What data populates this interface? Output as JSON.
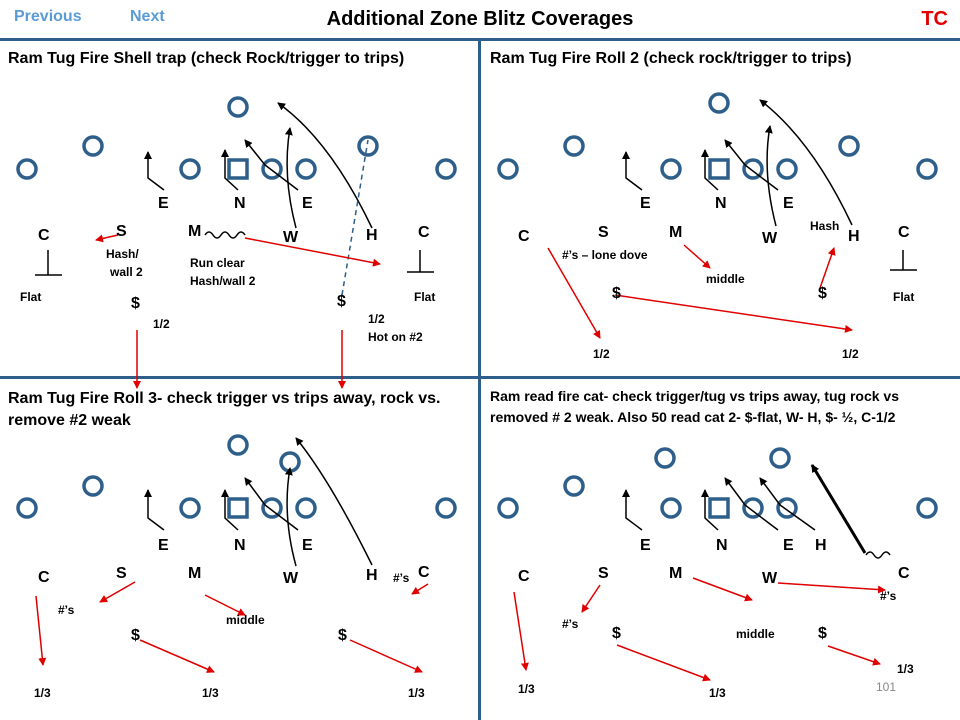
{
  "nav": {
    "previous": "Previous",
    "next": "Next"
  },
  "page_title": "Additional Zone Blitz Coverages",
  "badge": "TC",
  "page_number": "101",
  "colors": {
    "route_black": "#000000",
    "route_red": "#e00000",
    "defender_circle": "#2e5f8a",
    "nav_link": "#5b9bd5",
    "divider": "#2e5f8a"
  },
  "panels": [
    {
      "title": "Ram Tug Fire Shell trap (check Rock/trigger to trips)",
      "labels": [
        "E",
        "N",
        "E",
        "C",
        "S",
        "M",
        "W",
        "H",
        "C",
        "Hash/",
        "wall 2",
        "Run clear",
        "Hash/wall 2",
        "Flat",
        "Flat",
        "$",
        "$",
        "1/2",
        "1/2",
        "Hot on #2"
      ]
    },
    {
      "title": "Ram Tug Fire Roll 2 (check rock/trigger to trips)",
      "labels": [
        "E",
        "N",
        "E",
        "C",
        "S",
        "M",
        "W",
        "Hash",
        "H",
        "C",
        "#’s – lone dove",
        "middle",
        "$",
        "$",
        "Flat",
        "1/2",
        "1/2"
      ]
    },
    {
      "title": "Ram Tug Fire Roll 3- check trigger vs trips away, rock vs. remove #2 weak",
      "labels": [
        "E",
        "N",
        "E",
        "C",
        "S",
        "M",
        "W",
        "H",
        "#’s",
        "C",
        "#’s",
        "middle",
        "$",
        "$",
        "1/3",
        "1/3",
        "1/3"
      ]
    },
    {
      "title": "Ram read fire cat- check trigger/tug vs trips away, tug rock vs removed # 2 weak. Also 50 read cat 2- $-flat, W- H, $- ½, C-1/2",
      "labels": [
        "E",
        "N",
        "E",
        "H",
        "C",
        "S",
        "M",
        "W",
        "C",
        "#’s",
        "#’s",
        "$",
        "middle",
        "$",
        "1/3",
        "1/3",
        "1/3"
      ]
    }
  ]
}
